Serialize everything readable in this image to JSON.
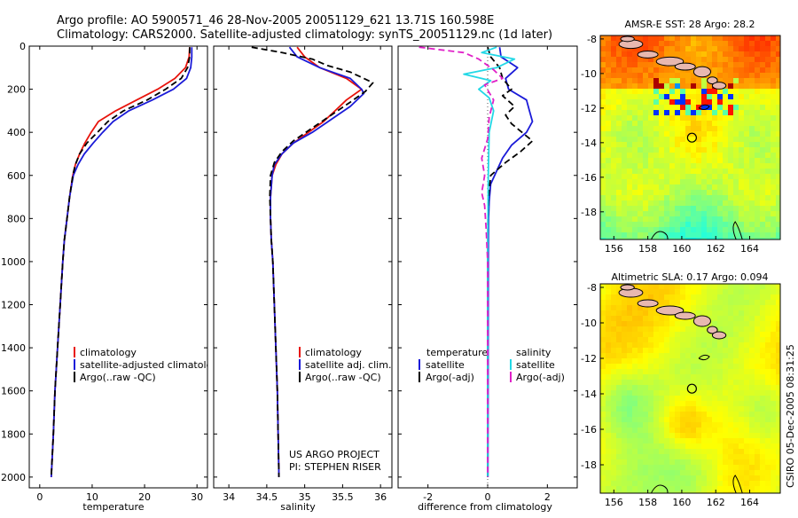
{
  "header": {
    "line1": "Argo profile: AO 5900571_46 28-Nov-2005 20051129_621 13.71S 160.598E",
    "line2": "Climatology: CARS2000. Satellite-adjusted climatology: synTS_20051129.nc (1d later)"
  },
  "credit": {
    "line1": "US ARGO PROJECT",
    "line2": "PI: STEPHEN RISER"
  },
  "stamp": "CSIRO 05-Dec-2005 08:31:25",
  "colors": {
    "clim": "#e8140c",
    "sat": "#1a1ad8",
    "argo": "#000000",
    "diff_sal": "#22d8e6",
    "diff_argo_sal": "#e020c8"
  },
  "chart_data": [
    {
      "id": "temperature",
      "type": "line",
      "xlabel": "temperature",
      "ylabel": "",
      "xlim": [
        -2,
        32
      ],
      "ylim": [
        2050,
        0
      ],
      "xticks": [
        0,
        10,
        20,
        30
      ],
      "yticks": [
        0,
        200,
        400,
        600,
        800,
        1000,
        1200,
        1400,
        1600,
        1800,
        2000
      ],
      "legend": [
        "climatology",
        "satellite-adjusted climatology",
        "Argo(..raw -QC)"
      ],
      "series": [
        {
          "name": "climatology",
          "style": "clim",
          "points": [
            [
              28.6,
              5
            ],
            [
              28.5,
              50
            ],
            [
              27.8,
              100
            ],
            [
              25.8,
              150
            ],
            [
              22.5,
              200
            ],
            [
              18.5,
              250
            ],
            [
              14.5,
              300
            ],
            [
              11.2,
              350
            ],
            [
              9.8,
              400
            ],
            [
              8.6,
              450
            ],
            [
              7.6,
              500
            ],
            [
              6.8,
              550
            ],
            [
              6.3,
              600
            ],
            [
              5.7,
              700
            ],
            [
              5.2,
              800
            ],
            [
              4.7,
              900
            ],
            [
              4.4,
              1000
            ],
            [
              3.9,
              1200
            ],
            [
              3.4,
              1400
            ],
            [
              2.9,
              1600
            ],
            [
              2.6,
              1800
            ],
            [
              2.2,
              2000
            ]
          ]
        },
        {
          "name": "satellite",
          "style": "sat",
          "points": [
            [
              29.0,
              5
            ],
            [
              29.0,
              50
            ],
            [
              28.8,
              100
            ],
            [
              28.0,
              150
            ],
            [
              25.5,
              200
            ],
            [
              21.5,
              250
            ],
            [
              17.0,
              300
            ],
            [
              14.0,
              350
            ],
            [
              12.0,
              400
            ],
            [
              10.2,
              450
            ],
            [
              8.5,
              500
            ],
            [
              7.3,
              550
            ],
            [
              6.4,
              600
            ],
            [
              5.7,
              700
            ],
            [
              5.2,
              800
            ],
            [
              4.7,
              900
            ],
            [
              4.4,
              1000
            ],
            [
              3.9,
              1200
            ],
            [
              3.4,
              1400
            ],
            [
              2.9,
              1600
            ],
            [
              2.6,
              1800
            ],
            [
              2.2,
              2000
            ]
          ]
        },
        {
          "name": "argo",
          "style": "argo",
          "points": [
            [
              28.6,
              5
            ],
            [
              28.6,
              50
            ],
            [
              28.2,
              100
            ],
            [
              27.0,
              150
            ],
            [
              24.0,
              200
            ],
            [
              20.5,
              250
            ],
            [
              16.0,
              300
            ],
            [
              13.0,
              350
            ],
            [
              11.0,
              400
            ],
            [
              9.0,
              450
            ],
            [
              7.6,
              500
            ],
            [
              6.8,
              550
            ],
            [
              6.3,
              600
            ],
            [
              5.7,
              700
            ],
            [
              5.2,
              800
            ],
            [
              4.7,
              900
            ],
            [
              4.4,
              1000
            ],
            [
              3.9,
              1200
            ],
            [
              3.4,
              1400
            ],
            [
              2.9,
              1600
            ],
            [
              2.6,
              1800
            ],
            [
              2.2,
              2000
            ]
          ]
        }
      ]
    },
    {
      "id": "salinity",
      "type": "line",
      "xlabel": "salinity",
      "xlim": [
        33.8,
        36.15
      ],
      "ylim": [
        2050,
        0
      ],
      "xticks": [
        34,
        34.5,
        35,
        35.5,
        36
      ],
      "legend": [
        "climatology",
        "satellite adj. clim.",
        "Argo(..raw -QC)"
      ],
      "series": [
        {
          "name": "climatology",
          "style": "clim",
          "points": [
            [
              34.9,
              5
            ],
            [
              35.0,
              50
            ],
            [
              35.2,
              100
            ],
            [
              35.55,
              150
            ],
            [
              35.75,
              200
            ],
            [
              35.55,
              250
            ],
            [
              35.4,
              300
            ],
            [
              35.25,
              350
            ],
            [
              35.05,
              400
            ],
            [
              34.85,
              450
            ],
            [
              34.7,
              500
            ],
            [
              34.62,
              550
            ],
            [
              34.57,
              600
            ],
            [
              34.55,
              700
            ],
            [
              34.55,
              800
            ],
            [
              34.56,
              900
            ],
            [
              34.58,
              1000
            ],
            [
              34.6,
              1200
            ],
            [
              34.62,
              1400
            ],
            [
              34.64,
              1600
            ],
            [
              34.65,
              1800
            ],
            [
              34.66,
              2000
            ]
          ]
        },
        {
          "name": "satellite",
          "style": "sat",
          "points": [
            [
              34.8,
              5
            ],
            [
              34.9,
              50
            ],
            [
              35.2,
              100
            ],
            [
              35.6,
              150
            ],
            [
              35.75,
              200
            ],
            [
              35.78,
              220
            ],
            [
              35.6,
              280
            ],
            [
              35.35,
              340
            ],
            [
              35.1,
              400
            ],
            [
              34.85,
              450
            ],
            [
              34.7,
              500
            ],
            [
              34.6,
              550
            ],
            [
              34.57,
              600
            ],
            [
              34.55,
              700
            ],
            [
              34.55,
              800
            ],
            [
              34.56,
              900
            ],
            [
              34.58,
              1000
            ],
            [
              34.6,
              1200
            ],
            [
              34.62,
              1400
            ],
            [
              34.64,
              1600
            ],
            [
              34.65,
              1800
            ],
            [
              34.66,
              2000
            ]
          ]
        },
        {
          "name": "argo",
          "style": "argo",
          "points": [
            [
              34.3,
              5
            ],
            [
              34.7,
              30
            ],
            [
              35.1,
              60
            ],
            [
              35.3,
              90
            ],
            [
              35.6,
              120
            ],
            [
              35.9,
              170
            ],
            [
              35.8,
              210
            ],
            [
              35.6,
              260
            ],
            [
              35.35,
              320
            ],
            [
              35.1,
              380
            ],
            [
              34.85,
              440
            ],
            [
              34.7,
              490
            ],
            [
              34.6,
              540
            ],
            [
              34.55,
              600
            ],
            [
              34.54,
              700
            ],
            [
              34.55,
              800
            ],
            [
              34.56,
              900
            ],
            [
              34.58,
              1000
            ],
            [
              34.6,
              1200
            ],
            [
              34.62,
              1400
            ],
            [
              34.64,
              1600
            ],
            [
              34.65,
              1800
            ],
            [
              34.66,
              2000
            ]
          ]
        }
      ]
    },
    {
      "id": "difference",
      "type": "line",
      "xlabel": "difference from climatology",
      "xlim": [
        -3,
        3
      ],
      "ylim": [
        2050,
        0
      ],
      "xticks": [
        -2,
        0,
        2
      ],
      "legend_left_title": "temperature",
      "legend_right_title": "salinity",
      "legend": [
        "satellite",
        "Argo(-adj)",
        "satellite",
        "Argo(-adj)"
      ],
      "series": [
        {
          "name": "temp satellite",
          "style": "sat",
          "points": [
            [
              0.4,
              5
            ],
            [
              0.45,
              50
            ],
            [
              1.0,
              100
            ],
            [
              0.6,
              150
            ],
            [
              0.7,
              200
            ],
            [
              1.3,
              250
            ],
            [
              1.4,
              300
            ],
            [
              1.5,
              350
            ],
            [
              1.3,
              400
            ],
            [
              0.8,
              460
            ],
            [
              0.5,
              520
            ],
            [
              0.3,
              580
            ],
            [
              0.1,
              640
            ],
            [
              0.05,
              720
            ],
            [
              0.03,
              800
            ],
            [
              0.02,
              1000
            ],
            [
              0.01,
              2000
            ]
          ]
        },
        {
          "name": "temp argo",
          "style": "argo",
          "points": [
            [
              0.0,
              5
            ],
            [
              0.1,
              50
            ],
            [
              0.4,
              100
            ],
            [
              0.5,
              150
            ],
            [
              0.8,
              200
            ],
            [
              0.5,
              230
            ],
            [
              0.9,
              280
            ],
            [
              0.6,
              320
            ],
            [
              0.8,
              360
            ],
            [
              1.5,
              440
            ],
            [
              1.1,
              490
            ],
            [
              0.6,
              540
            ],
            [
              0.1,
              600
            ],
            [
              0.03,
              700
            ],
            [
              0.01,
              800
            ],
            [
              0.0,
              1000
            ],
            [
              0.0,
              2000
            ]
          ]
        },
        {
          "name": "sal satellite",
          "style": "diff_sal",
          "points": [
            [
              0.3,
              5
            ],
            [
              -0.2,
              30
            ],
            [
              0.9,
              60
            ],
            [
              0.3,
              100
            ],
            [
              -0.8,
              130
            ],
            [
              0.1,
              160
            ],
            [
              -0.3,
              200
            ],
            [
              0.05,
              240
            ],
            [
              0.2,
              300
            ],
            [
              0.05,
              400
            ],
            [
              0.02,
              600
            ],
            [
              0.01,
              800
            ],
            [
              0.0,
              1000
            ],
            [
              0.0,
              2000
            ]
          ]
        },
        {
          "name": "sal argo",
          "style": "diff_argo_sal",
          "points": [
            [
              -2.3,
              5
            ],
            [
              -0.8,
              30
            ],
            [
              -0.3,
              60
            ],
            [
              0.2,
              110
            ],
            [
              0.5,
              150
            ],
            [
              -0.1,
              180
            ],
            [
              0.2,
              250
            ],
            [
              0.05,
              330
            ],
            [
              0.0,
              430
            ],
            [
              -0.2,
              520
            ],
            [
              -0.1,
              600
            ],
            [
              -0.2,
              680
            ],
            [
              -0.1,
              740
            ],
            [
              -0.05,
              850
            ],
            [
              0.0,
              1000
            ],
            [
              0.0,
              2000
            ]
          ]
        }
      ]
    },
    {
      "id": "sst_map",
      "type": "heatmap",
      "title": "AMSR-E SST: 28 Argo: 28.2",
      "xticks": [
        156,
        158,
        160,
        162,
        164
      ],
      "yticks": [
        -8,
        -10,
        -12,
        -14,
        -16,
        -18
      ],
      "xlim": [
        155.2,
        165.8
      ],
      "ylim": [
        -19.6,
        -7.8
      ],
      "float_position": [
        160.598,
        -13.71
      ]
    },
    {
      "id": "sla_map",
      "type": "heatmap",
      "title": "Altimetric SLA: 0.17 Argo: 0.094",
      "xticks": [
        156,
        158,
        160,
        162,
        164
      ],
      "yticks": [
        -8,
        -10,
        -12,
        -14,
        -16,
        -18
      ],
      "xlim": [
        155.2,
        165.8
      ],
      "ylim": [
        -19.6,
        -7.8
      ],
      "float_position": [
        160.598,
        -13.71
      ]
    }
  ]
}
